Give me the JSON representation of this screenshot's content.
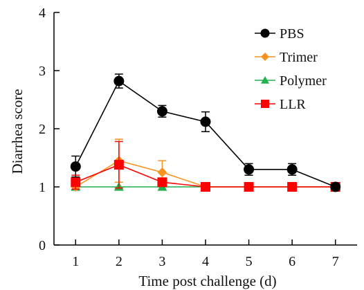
{
  "chart_data": {
    "type": "line",
    "title": "",
    "xlabel": "Time post challenge (d)",
    "ylabel": "Diarrhea score",
    "x": [
      1,
      2,
      3,
      4,
      5,
      6,
      7
    ],
    "xlim": [
      0.5,
      7.5
    ],
    "ylim": [
      0,
      4
    ],
    "xticks": [
      "1",
      "2",
      "3",
      "4",
      "5",
      "6",
      "7"
    ],
    "yticks": [
      "0",
      "1",
      "2",
      "3",
      "4"
    ],
    "grid": false,
    "legend_position": "top-right",
    "series": [
      {
        "name": "PBS",
        "color": "#000000",
        "marker": "circle",
        "values": [
          1.35,
          2.82,
          2.3,
          2.12,
          1.3,
          1.3,
          1.0
        ],
        "error": [
          0.18,
          0.12,
          0.1,
          0.17,
          0.1,
          0.1,
          0.0
        ]
      },
      {
        "name": "Trimer",
        "color": "#f7931e",
        "marker": "diamond",
        "values": [
          1.0,
          1.45,
          1.25,
          1.0,
          1.0,
          1.0,
          1.0
        ],
        "error": [
          0.0,
          0.37,
          0.2,
          0.0,
          0.0,
          0.0,
          0.0
        ]
      },
      {
        "name": "Polymer",
        "color": "#22b14c",
        "marker": "triangle",
        "values": [
          1.0,
          1.0,
          1.0,
          1.0,
          1.0,
          1.0,
          1.0
        ],
        "error": [
          0,
          0,
          0,
          0,
          0,
          0,
          0
        ]
      },
      {
        "name": "LLR",
        "color": "#ff0000",
        "marker": "square",
        "values": [
          1.08,
          1.38,
          1.08,
          1.0,
          1.0,
          1.0,
          1.0
        ],
        "error": [
          0.12,
          0.4,
          0.0,
          0.0,
          0.0,
          0.0,
          0.0
        ]
      }
    ]
  }
}
